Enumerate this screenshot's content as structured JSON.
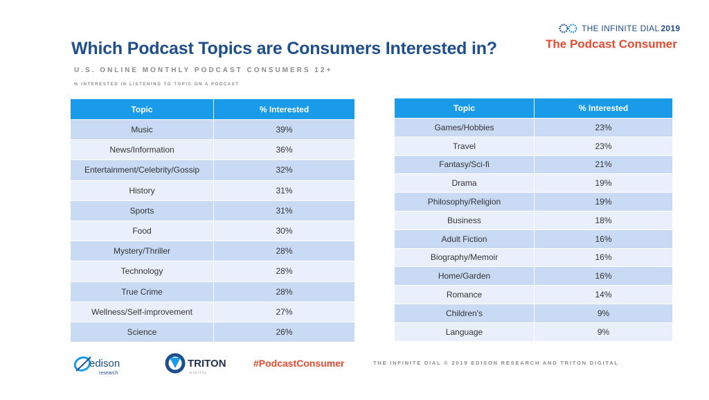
{
  "header": {
    "title": "Which Podcast Topics are Consumers Interested in?",
    "subtitle": "U.S. ONLINE MONTHLY PODCAST CONSUMERS 12+",
    "note": "% INTERESTED IN LISTENING TO TOPIC ON A PODCAST"
  },
  "brand": {
    "name": "THE INFINITE DIAL",
    "year": "2019",
    "report": "The Podcast Consumer",
    "logo_icon": "infinite-dial-logo-icon"
  },
  "chart_data": {
    "type": "table",
    "columns": [
      "Topic",
      "% Interested"
    ],
    "tables": [
      {
        "rows": [
          {
            "topic": "Music",
            "value": "39%"
          },
          {
            "topic": "News/Information",
            "value": "36%"
          },
          {
            "topic": "Entertainment/Celebrity/Gossip",
            "value": "32%"
          },
          {
            "topic": "History",
            "value": "31%"
          },
          {
            "topic": "Sports",
            "value": "31%"
          },
          {
            "topic": "Food",
            "value": "30%"
          },
          {
            "topic": "Mystery/Thriller",
            "value": "28%"
          },
          {
            "topic": "Technology",
            "value": "28%"
          },
          {
            "topic": "True Crime",
            "value": "28%"
          },
          {
            "topic": "Wellness/Self-improvement",
            "value": "27%"
          },
          {
            "topic": "Science",
            "value": "26%"
          }
        ]
      },
      {
        "rows": [
          {
            "topic": "Games/Hobbies",
            "value": "23%"
          },
          {
            "topic": "Travel",
            "value": "23%"
          },
          {
            "topic": "Fantasy/Sci-fi",
            "value": "21%"
          },
          {
            "topic": "Drama",
            "value": "19%"
          },
          {
            "topic": "Philosophy/Religion",
            "value": "19%"
          },
          {
            "topic": "Business",
            "value": "18%"
          },
          {
            "topic": "Adult Fiction",
            "value": "16%"
          },
          {
            "topic": "Biography/Memoir",
            "value": "16%"
          },
          {
            "topic": "Home/Garden",
            "value": "16%"
          },
          {
            "topic": "Romance",
            "value": "14%"
          },
          {
            "topic": "Children's",
            "value": "9%"
          },
          {
            "topic": "Language",
            "value": "9%"
          }
        ]
      }
    ],
    "header_color": "#1a9bea",
    "row_colors": [
      "#c9daf5",
      "#e9f0fb"
    ]
  },
  "footer": {
    "edison_name": "edison",
    "edison_sub": "research",
    "triton_name": "TRITON",
    "triton_sub": "D I G I T A L",
    "hashtag": "#PodcastConsumer",
    "credit": "THE INFINITE DIAL  © 2019 EDISON RESEARCH AND TRITON DIGITAL"
  }
}
